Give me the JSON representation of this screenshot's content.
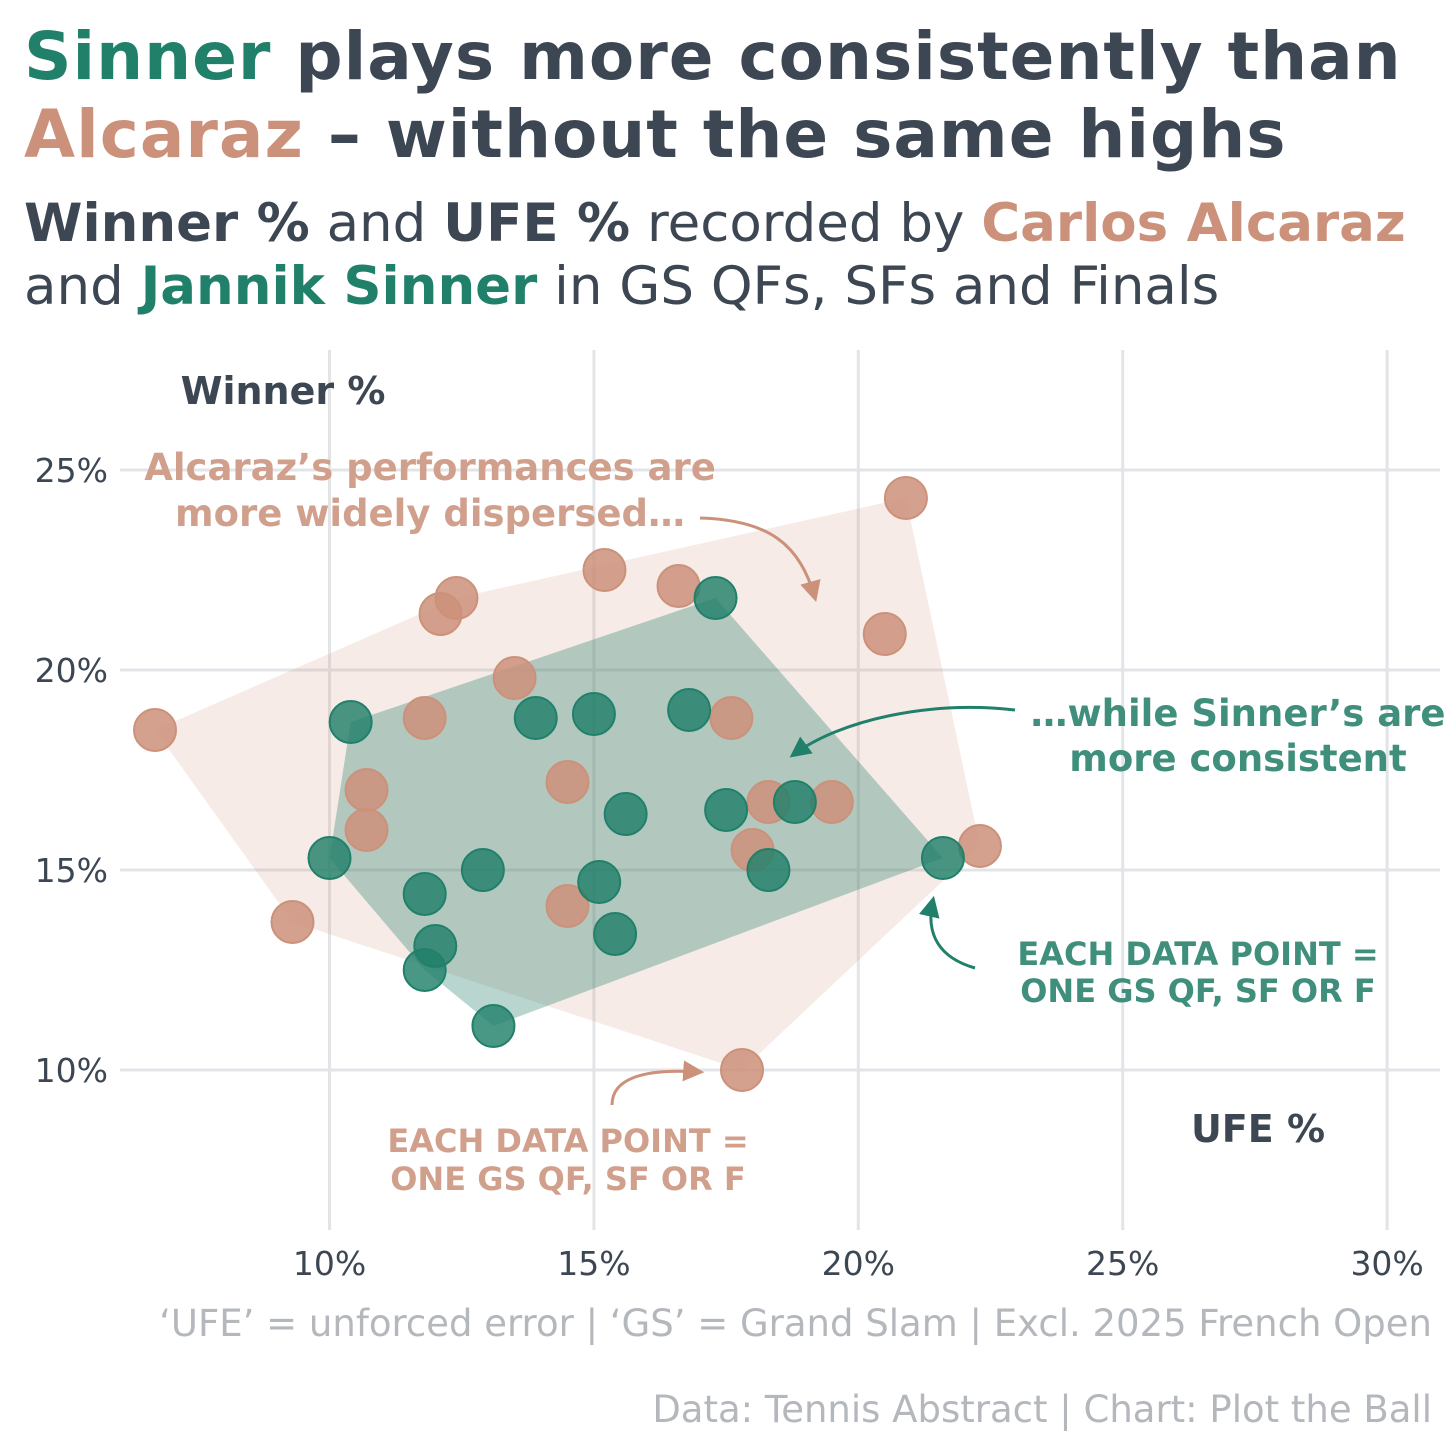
{
  "title": {
    "line1_name": "Sinner",
    "line1_rest": " plays more consistently than",
    "line2_name": "Alcaraz",
    "line2_rest": " – without the same highs"
  },
  "subtitle": {
    "metric1": "Winner %",
    "and1": " and ",
    "metric2": "UFE %",
    "recorded": " recorded by ",
    "player1": "Carlos Alcaraz",
    "and2": "and ",
    "player2": "Jannik Sinner",
    "tail": " in GS QFs, SFs and Finals"
  },
  "colors": {
    "sinner": "#21806a",
    "alcaraz": "#cc917a",
    "text": "#3d4753",
    "muted": "#b4b8bd",
    "grid": "#e3e4e7"
  },
  "chart_data": {
    "type": "scatter",
    "xlabel": "UFE %",
    "ylabel": "Winner %",
    "xlim": [
      6,
      31
    ],
    "ylim": [
      6,
      28
    ],
    "xticks": [
      10,
      15,
      20,
      25,
      30
    ],
    "yticks": [
      10,
      15,
      20,
      25
    ],
    "xtick_labels": [
      "10%",
      "15%",
      "20%",
      "25%",
      "30%"
    ],
    "ytick_labels": [
      "10%",
      "15%",
      "20%",
      "25%"
    ],
    "grid": true,
    "series": [
      {
        "name": "Carlos Alcaraz",
        "color": "#cc917a",
        "points": [
          [
            6.7,
            18.5
          ],
          [
            9.3,
            13.7
          ],
          [
            10.7,
            17.0
          ],
          [
            10.7,
            16.0
          ],
          [
            11.8,
            18.8
          ],
          [
            12.1,
            21.4
          ],
          [
            12.4,
            21.8
          ],
          [
            13.5,
            19.8
          ],
          [
            14.5,
            17.2
          ],
          [
            14.5,
            14.1
          ],
          [
            15.2,
            22.5
          ],
          [
            16.6,
            22.1
          ],
          [
            17.6,
            18.8
          ],
          [
            17.8,
            10.0
          ],
          [
            18.0,
            15.5
          ],
          [
            18.3,
            16.7
          ],
          [
            19.5,
            16.7
          ],
          [
            20.5,
            20.9
          ],
          [
            20.9,
            24.3
          ],
          [
            22.3,
            15.6
          ]
        ]
      },
      {
        "name": "Jannik Sinner",
        "color": "#21806a",
        "points": [
          [
            10.0,
            15.3
          ],
          [
            10.4,
            18.7
          ],
          [
            11.8,
            14.4
          ],
          [
            11.8,
            12.5
          ],
          [
            12.0,
            13.1
          ],
          [
            12.9,
            15.0
          ],
          [
            13.1,
            11.1
          ],
          [
            13.9,
            18.8
          ],
          [
            15.0,
            18.9
          ],
          [
            15.1,
            14.7
          ],
          [
            15.4,
            13.4
          ],
          [
            15.6,
            16.4
          ],
          [
            16.8,
            19.0
          ],
          [
            17.3,
            21.8
          ],
          [
            17.5,
            16.5
          ],
          [
            18.3,
            15.0
          ],
          [
            18.8,
            16.7
          ],
          [
            21.6,
            15.3
          ]
        ]
      }
    ],
    "annotations": {
      "alcaraz_spread_line1": "Alcaraz’s performances are",
      "alcaraz_spread_line2": "more widely dispersed…",
      "sinner_spread_line1": "…while Sinner’s are",
      "sinner_spread_line2": "more consistent",
      "sinner_key_line1": "EACH DATA POINT =",
      "sinner_key_line2": "ONE GS QF, SF OR F",
      "alcaraz_key_line1": "EACH DATA POINT =",
      "alcaraz_key_line2": "ONE GS QF, SF OR F"
    }
  },
  "footnote": "‘UFE’ = unforced error | ‘GS’ = Grand Slam | Excl. 2025 French Open",
  "credit": "Data: Tennis Abstract | Chart: Plot the Ball"
}
